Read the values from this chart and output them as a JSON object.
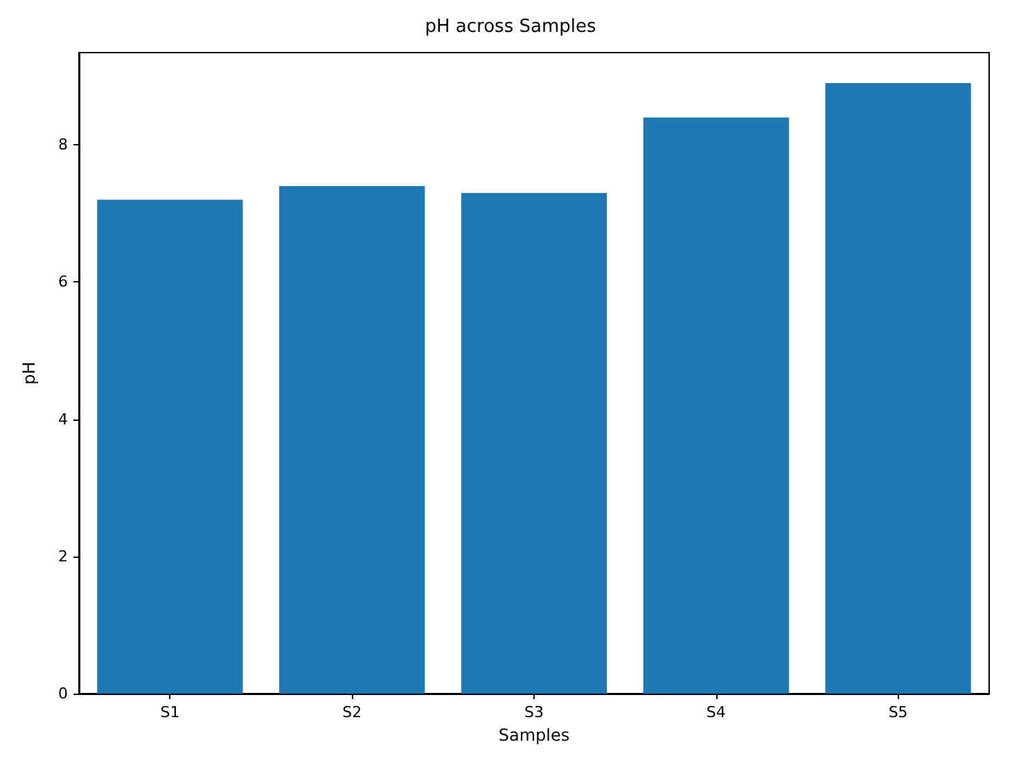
{
  "chart_data": {
    "type": "bar",
    "title": "pH across Samples",
    "xlabel": "Samples",
    "ylabel": "pH",
    "categories": [
      "S1",
      "S2",
      "S3",
      "S4",
      "S5"
    ],
    "values": [
      7.2,
      7.4,
      7.3,
      8.4,
      8.9
    ],
    "color": "#1f77b4",
    "ylim": [
      0,
      9.345
    ],
    "yticks": [
      0,
      2,
      4,
      6,
      8
    ],
    "grid": false
  }
}
